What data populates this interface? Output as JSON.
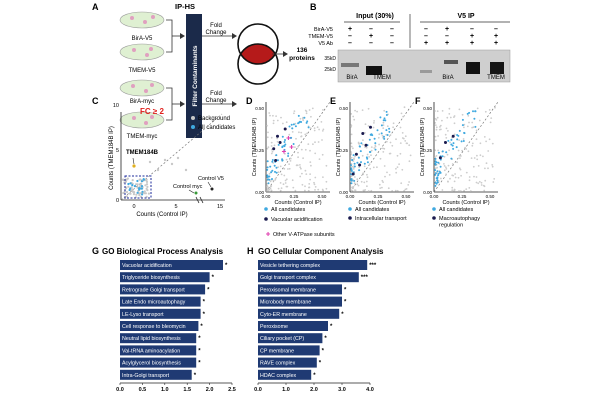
{
  "panel_labels": {
    "a": "A",
    "b": "B",
    "c": "C",
    "d": "D",
    "e": "E",
    "f": "F",
    "g": "G",
    "h": "H"
  },
  "panel_a": {
    "title": "IP-HS",
    "samples": [
      "BirA-V5",
      "TMEM-V5",
      "BirA-myc",
      "TMEM-myc"
    ],
    "filter_label": "Filter Contaminants",
    "fold_change_label": "Fold Change",
    "result": "136 proteins"
  },
  "panel_b": {
    "input_header": "Input (30%)",
    "ip_header": "V5 IP",
    "row_labels": [
      "BirA-V5",
      "TMEM-V5",
      "V5 Ab"
    ],
    "signs_input": [
      [
        "+",
        "–",
        "–"
      ],
      [
        "–",
        "+",
        "–"
      ],
      [
        "–",
        "–",
        "–"
      ]
    ],
    "signs_ip": [
      [
        "–",
        "+",
        "–",
        "–"
      ],
      [
        "–",
        "–",
        "+",
        "+"
      ],
      [
        "+",
        "+",
        "+",
        "+"
      ]
    ],
    "mw_labels": [
      "35kD",
      "25kD"
    ],
    "band_labels": [
      "BirA",
      "TMEM",
      "BirA",
      "TMEM"
    ]
  },
  "panel_c": {
    "fc_label": "FC ≥ 2",
    "legend": [
      "Background",
      "All candidates"
    ],
    "xlabel": "Counts (Control IP)",
    "ylabel": "Counts (TMEM184B IP)",
    "xticks": [
      "0",
      "5",
      "15"
    ],
    "yticks": [
      "0",
      "5",
      "10"
    ],
    "annotations": [
      "TMEM184B",
      "Control V5",
      "Control myc"
    ]
  },
  "scatter_small": {
    "xlabel": "Counts (Control IP)",
    "ylabel": "Counts (TMEM184B IP)",
    "xticks": [
      "0.00",
      "0.25",
      "0.50"
    ],
    "yticks": [
      "0.00",
      "0.25",
      "0.50"
    ]
  },
  "panel_d": {
    "legend": [
      "All candidates",
      "Vacuolar acidification",
      "Other V-ATPase subunits"
    ]
  },
  "panel_e": {
    "legend": [
      "All candidates",
      "Intracellular transport"
    ]
  },
  "panel_f": {
    "legend": [
      "All candidates",
      "Macroautophagy regulation"
    ]
  },
  "colors": {
    "bar": "#1f3a73",
    "candidate": "#3fa9e0",
    "highlight": "#1a1a4e",
    "vatpase": "#e040b0",
    "fc_red": "#e0201c",
    "dark_box": "#1b2a4a",
    "venn_red": "#b51a1a"
  },
  "chart_data": [
    {
      "type": "bar",
      "orientation": "horizontal",
      "title": "GO Biological Process Analysis",
      "categories": [
        "Vacuolar acidification",
        "Triglyceride biosynthesis",
        "Retrograde Golgi transport",
        "Late Endo microautophagy",
        "LE-Lyso transport",
        "Cell response to bleomycin",
        "Neutral lipid biosynthesis",
        "Val-tRNA aminoacylation",
        "Acylglycerol biosynthesis",
        "Intra-Golgi transport"
      ],
      "values": [
        2.3,
        2.0,
        1.9,
        1.8,
        1.8,
        1.75,
        1.7,
        1.7,
        1.7,
        1.6
      ],
      "significance": [
        "*",
        "*",
        "*",
        "*",
        "*",
        "*",
        "*",
        "*",
        "*",
        "*"
      ],
      "xlim": [
        0,
        2.5
      ],
      "xticks": [
        "0.0",
        "0.5",
        "1.0",
        "1.5",
        "2.0",
        "2.5"
      ]
    },
    {
      "type": "bar",
      "orientation": "horizontal",
      "title": "GO Cellular Component Analysis",
      "categories": [
        "Vesicle tethering complex",
        "Golgi transport complex",
        "Peroxisomal membrane",
        "Microbody membrane",
        "Cyto-ER membrane",
        "Peroxisome",
        "Ciliary pocket (CP)",
        "CP membrane",
        "RAVE complex",
        "HDAC complex"
      ],
      "values": [
        3.9,
        3.6,
        3.0,
        3.0,
        2.9,
        2.5,
        2.3,
        2.2,
        2.1,
        1.9
      ],
      "significance": [
        "***",
        "***",
        "*",
        "*",
        "*",
        "*",
        "*",
        "*",
        "*",
        "*"
      ],
      "xlim": [
        0,
        4.0
      ],
      "xticks": [
        "0.0",
        "1.0",
        "2.0",
        "3.0",
        "4.0"
      ]
    }
  ]
}
